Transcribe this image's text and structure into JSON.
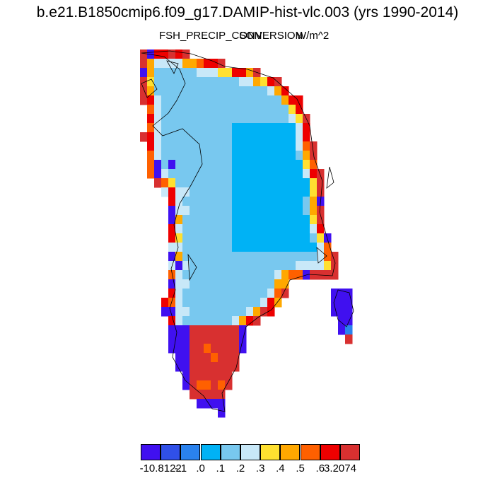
{
  "title": "b.e21.B1850cmip6.f09_g17.DAMIP-hist-vlc.003 (yrs 1990-2014)",
  "subtitle": {
    "variable": "FSH_PRECIP_CONVERSION",
    "season": "SON",
    "units": "W/m^2"
  },
  "colorbar": {
    "colors": [
      "#4010f0",
      "#3050e8",
      "#2a82ee",
      "#00b2f5",
      "#78c8ef",
      "#c8e8f8",
      "#ffe030",
      "#ffa800",
      "#ff6000",
      "#ee0000",
      "#d83030"
    ],
    "labels": [
      "-10.8122",
      "-.1",
      ".0",
      ".1",
      ".2",
      ".3",
      ".4",
      ".5",
      ".6",
      "3.2074"
    ]
  }
}
